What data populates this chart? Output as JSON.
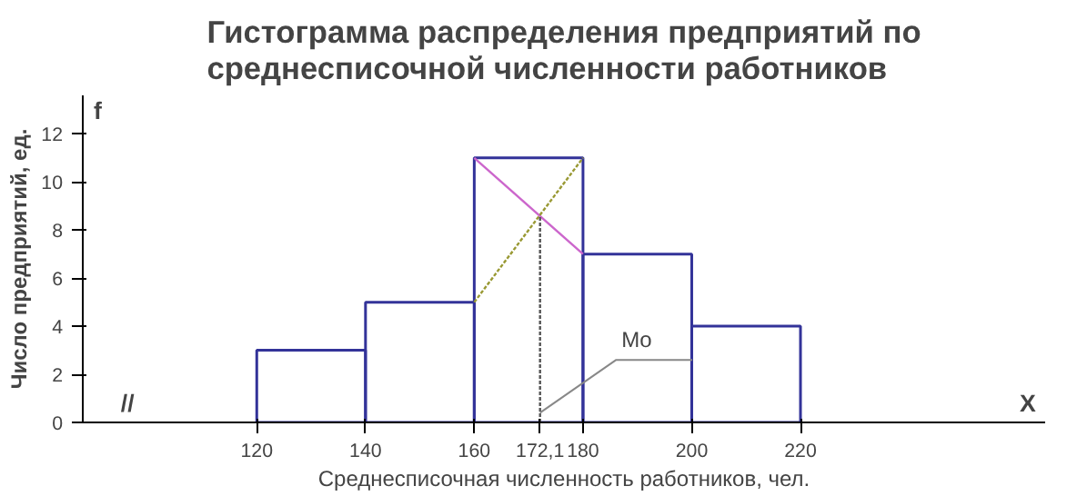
{
  "chart_data": {
    "type": "histogram",
    "title": "Гистограмма распределения предприятий по\nсреднесписочной численности работников",
    "xlabel": "Среднесписочная численность работников, чел.",
    "ylabel": "Число предприятий, ед.",
    "bins": [
      120,
      140,
      160,
      180,
      200,
      220
    ],
    "values": [
      3,
      5,
      11,
      7,
      4
    ],
    "color": "#333399",
    "series": [
      {
        "type": "line",
        "x": [
          160,
          180
        ],
        "values": [
          11,
          7
        ],
        "color": "#cc66cc",
        "line_style": "solid"
      },
      {
        "type": "line",
        "x": [
          160,
          180
        ],
        "values": [
          5,
          11
        ],
        "color": "#999933",
        "line_style": "dotted"
      },
      {
        "type": "line",
        "x": [
          172.1,
          172.1
        ],
        "values": [
          0,
          8.6
        ],
        "color": "#555555",
        "line_style": "dotted"
      }
    ],
    "xlim": [
      88,
      265
    ],
    "ylim": [
      0,
      13.6
    ],
    "xticks": [
      120,
      140,
      160,
      {
        "value": 172.1,
        "label": "172,1"
      },
      180,
      200,
      220
    ],
    "yticks": [
      0,
      2,
      4,
      6,
      8,
      10,
      12
    ],
    "grid": false,
    "annotations": [
      "f",
      "X",
      "//",
      {
        "text": "Mo",
        "x": 172.1,
        "y": 0.4
      }
    ]
  }
}
